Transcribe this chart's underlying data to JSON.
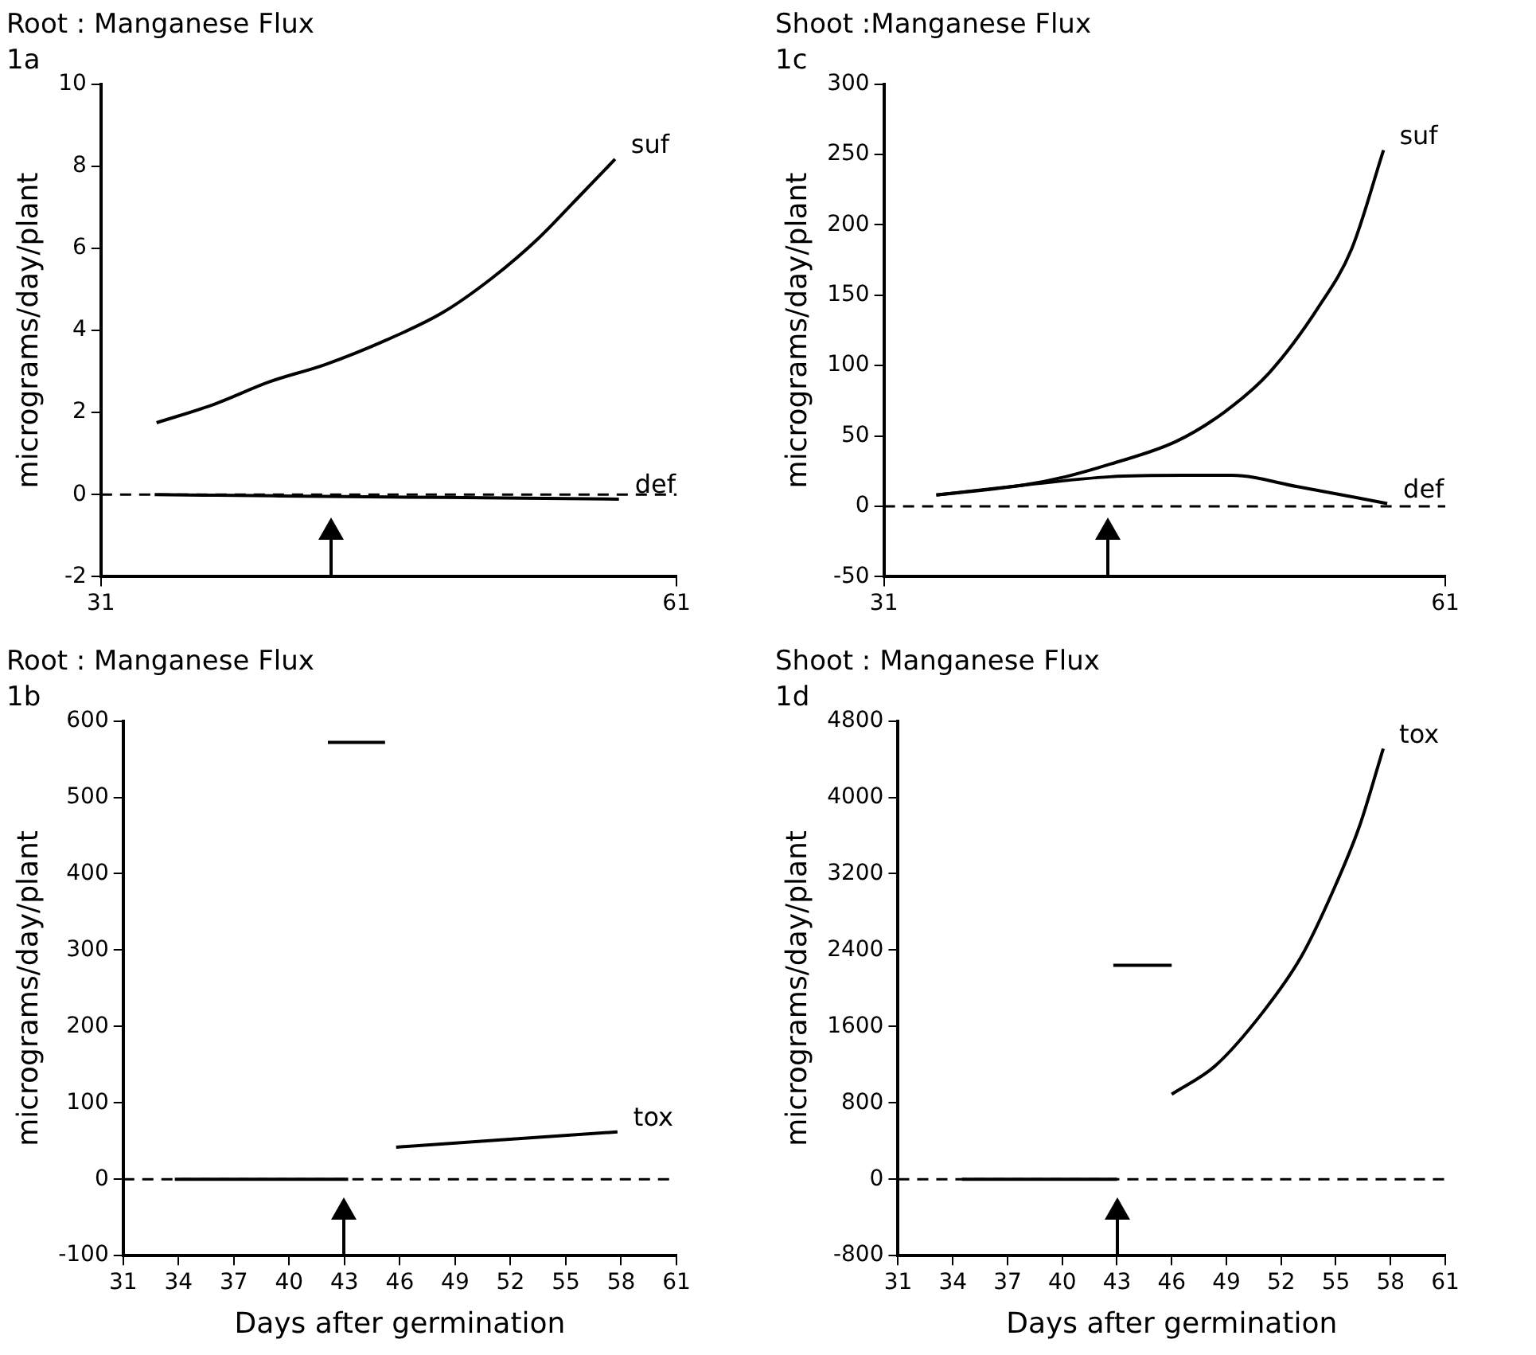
{
  "chart_data": [
    {
      "type": "line",
      "title": "Root : Manganese Flux",
      "subtitle": "1a",
      "ylabel": "micrograms/day/plant",
      "xlim": [
        31,
        61
      ],
      "xticks": [
        31,
        61
      ],
      "ylim": [
        -2,
        10
      ],
      "yticks": [
        -2,
        0,
        2,
        4,
        6,
        8,
        10
      ],
      "grid": false,
      "line_style": "solid",
      "series": [
        {
          "name": "suf",
          "color": "#000000",
          "x": [
            33.9,
            36.9,
            39.8,
            42.7,
            45.9,
            48.8,
            51.4,
            53.8,
            55.8,
            57.8
          ],
          "values": [
            1.75,
            2.2,
            2.75,
            3.17,
            3.77,
            4.43,
            5.28,
            6.24,
            7.2,
            8.17
          ]
        },
        {
          "name": "def",
          "color": "#000000",
          "x": [
            33.8,
            40,
            46,
            52,
            58
          ],
          "values": [
            0,
            -0.03,
            -0.06,
            -0.08,
            -0.11
          ]
        }
      ],
      "ref_lines": [
        {
          "axis": "y",
          "value": 0,
          "color": "#000000",
          "line_style": "dashed"
        }
      ]
    },
    {
      "type": "line",
      "title": "Shoot :Manganese Flux",
      "subtitle": "1c",
      "ylabel": "micrograms/day/plant",
      "xlim": [
        31,
        61
      ],
      "xticks": [
        31,
        61
      ],
      "ylim": [
        -50,
        300
      ],
      "yticks": [
        -50,
        0,
        50,
        100,
        150,
        200,
        250,
        300
      ],
      "grid": false,
      "line_style": "solid",
      "series": [
        {
          "name": "suf",
          "color": "#000000",
          "x": [
            33.8,
            38.4,
            40.7,
            43.1,
            46.6,
            49.2,
            51.6,
            54.2,
            56,
            57.7
          ],
          "values": [
            8,
            15,
            21,
            30,
            46,
            67,
            95,
            141,
            183,
            253
          ]
        },
        {
          "name": "def",
          "color": "#000000",
          "x": [
            33.8,
            38.4,
            43.1,
            47,
            49.6,
            53.1,
            57.9
          ],
          "values": [
            8,
            15,
            21,
            22,
            22,
            14,
            2
          ]
        }
      ],
      "ref_lines": [
        {
          "axis": "y",
          "value": 0,
          "color": "#000000",
          "line_style": "dashed"
        }
      ]
    },
    {
      "type": "line",
      "title": "Root : Manganese Flux",
      "subtitle": "1b",
      "xlabel": "Days after germination",
      "ylabel": "micrograms/day/plant",
      "xlim": [
        31,
        61
      ],
      "xticks": [
        31,
        34,
        37,
        40,
        43,
        46,
        49,
        52,
        55,
        58,
        61
      ],
      "ylim": [
        -100,
        600
      ],
      "yticks": [
        -100,
        0,
        100,
        200,
        300,
        400,
        500,
        600
      ],
      "grid": false,
      "line_style": "solid",
      "series": [
        {
          "color": "#000000",
          "x": [
            33.8,
            43.2
          ],
          "values": [
            0,
            0
          ]
        },
        {
          "color": "#000000",
          "x": [
            42.1,
            45.2
          ],
          "values": [
            572,
            572
          ]
        },
        {
          "name": "tox",
          "color": "#000000",
          "x": [
            45.8,
            51.8,
            57.8
          ],
          "values": [
            42,
            52,
            62
          ]
        }
      ],
      "ref_lines": [
        {
          "axis": "y",
          "value": 0,
          "color": "#000000",
          "line_style": "dashed"
        }
      ]
    },
    {
      "type": "line",
      "title": "Shoot : Manganese Flux",
      "subtitle": "1d",
      "xlabel": "Days after germination",
      "ylabel": "micrograms/day/plant",
      "xlim": [
        31,
        61
      ],
      "xticks": [
        31,
        34,
        37,
        40,
        43,
        46,
        49,
        52,
        55,
        58,
        61
      ],
      "ylim": [
        -800,
        4800
      ],
      "yticks": [
        -800,
        0,
        800,
        1600,
        2400,
        3200,
        4000,
        4800
      ],
      "grid": false,
      "line_style": "solid",
      "series": [
        {
          "color": "#000000",
          "x": [
            34.5,
            43
          ],
          "values": [
            0,
            0
          ]
        },
        {
          "color": "#000000",
          "x": [
            42.8,
            46
          ],
          "values": [
            2240,
            2240
          ]
        },
        {
          "name": "tox",
          "color": "#000000",
          "x": [
            46,
            48.4,
            51,
            53.1,
            54.8,
            56.3,
            57.6
          ],
          "values": [
            890,
            1190,
            1750,
            2330,
            3000,
            3700,
            4510
          ]
        }
      ],
      "ref_lines": [
        {
          "axis": "y",
          "value": 0,
          "color": "#000000",
          "line_style": "dashed"
        }
      ]
    }
  ]
}
